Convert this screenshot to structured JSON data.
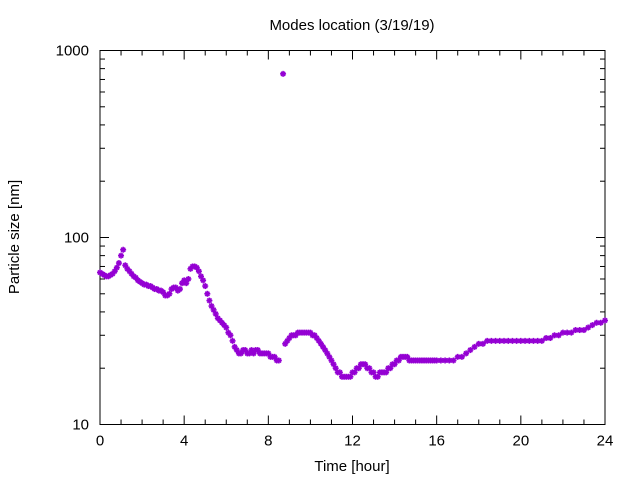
{
  "chart_data": {
    "type": "scatter",
    "title": "Modes location (3/19/19)",
    "xlabel": "Time [hour]",
    "ylabel": "Particle size [nm]",
    "xlim": [
      0,
      24
    ],
    "ylim": [
      10,
      1000
    ],
    "y_scale": "log",
    "grid": false,
    "legend": "none",
    "marker_color": "#9400d3",
    "x_ticks": [
      0,
      4,
      8,
      12,
      16,
      20,
      24
    ],
    "x_tick_labels": [
      "0",
      "4",
      "8",
      "12",
      "16",
      "20",
      "24"
    ],
    "y_ticks": [
      10,
      100,
      1000
    ],
    "y_tick_labels": [
      "10",
      "100",
      "1000"
    ],
    "series": [
      {
        "points": [
          [
            0.0,
            65
          ],
          [
            0.1,
            64
          ],
          [
            0.2,
            63
          ],
          [
            0.3,
            62
          ],
          [
            0.4,
            62
          ],
          [
            0.5,
            63
          ],
          [
            0.6,
            64
          ],
          [
            0.7,
            66
          ],
          [
            0.8,
            69
          ],
          [
            0.9,
            73
          ],
          [
            1.0,
            80
          ],
          [
            1.1,
            86
          ],
          [
            1.2,
            71
          ],
          [
            1.3,
            68
          ],
          [
            1.4,
            66
          ],
          [
            1.5,
            64
          ],
          [
            1.6,
            62
          ],
          [
            1.7,
            61
          ],
          [
            1.8,
            59
          ],
          [
            1.9,
            58
          ],
          [
            2.0,
            57
          ],
          [
            2.1,
            56
          ],
          [
            2.2,
            56
          ],
          [
            2.3,
            55
          ],
          [
            2.4,
            55
          ],
          [
            2.5,
            54
          ],
          [
            2.6,
            53
          ],
          [
            2.7,
            53
          ],
          [
            2.8,
            52
          ],
          [
            2.9,
            52
          ],
          [
            3.0,
            51
          ],
          [
            3.1,
            49
          ],
          [
            3.2,
            49
          ],
          [
            3.3,
            50
          ],
          [
            3.4,
            53
          ],
          [
            3.5,
            54
          ],
          [
            3.6,
            54
          ],
          [
            3.7,
            52
          ],
          [
            3.8,
            53
          ],
          [
            3.9,
            57
          ],
          [
            4.0,
            59
          ],
          [
            4.1,
            57
          ],
          [
            4.2,
            60
          ],
          [
            4.3,
            68
          ],
          [
            4.4,
            70
          ],
          [
            4.5,
            70
          ],
          [
            4.6,
            69
          ],
          [
            4.7,
            66
          ],
          [
            4.8,
            62
          ],
          [
            4.9,
            59
          ],
          [
            5.0,
            55
          ],
          [
            5.1,
            50
          ],
          [
            5.2,
            46
          ],
          [
            5.3,
            43
          ],
          [
            5.4,
            41
          ],
          [
            5.5,
            39
          ],
          [
            5.6,
            37
          ],
          [
            5.7,
            36
          ],
          [
            5.8,
            35
          ],
          [
            5.9,
            34
          ],
          [
            6.0,
            33
          ],
          [
            6.1,
            31
          ],
          [
            6.2,
            30
          ],
          [
            6.3,
            28
          ],
          [
            6.4,
            26
          ],
          [
            6.5,
            25
          ],
          [
            6.6,
            24
          ],
          [
            6.7,
            24
          ],
          [
            6.8,
            25
          ],
          [
            6.9,
            25
          ],
          [
            7.0,
            24
          ],
          [
            7.1,
            24
          ],
          [
            7.2,
            25
          ],
          [
            7.3,
            24
          ],
          [
            7.4,
            25
          ],
          [
            7.5,
            25
          ],
          [
            7.6,
            24
          ],
          [
            7.7,
            24
          ],
          [
            7.8,
            24
          ],
          [
            7.9,
            24
          ],
          [
            8.0,
            24
          ],
          [
            8.1,
            23
          ],
          [
            8.2,
            23
          ],
          [
            8.3,
            23
          ],
          [
            8.4,
            22
          ],
          [
            8.5,
            22
          ],
          [
            8.7,
            750
          ],
          [
            8.8,
            27
          ],
          [
            8.9,
            28
          ],
          [
            9.0,
            29
          ],
          [
            9.1,
            30
          ],
          [
            9.2,
            30
          ],
          [
            9.3,
            30
          ],
          [
            9.4,
            31
          ],
          [
            9.5,
            31
          ],
          [
            9.6,
            31
          ],
          [
            9.7,
            31
          ],
          [
            9.8,
            31
          ],
          [
            9.9,
            31
          ],
          [
            10.0,
            31
          ],
          [
            10.1,
            30
          ],
          [
            10.2,
            30
          ],
          [
            10.3,
            29
          ],
          [
            10.4,
            28
          ],
          [
            10.5,
            27
          ],
          [
            10.6,
            26
          ],
          [
            10.7,
            25
          ],
          [
            10.8,
            24
          ],
          [
            10.9,
            23
          ],
          [
            11.0,
            22
          ],
          [
            11.1,
            21
          ],
          [
            11.2,
            20
          ],
          [
            11.3,
            19
          ],
          [
            11.4,
            19
          ],
          [
            11.5,
            18
          ],
          [
            11.6,
            18
          ],
          [
            11.7,
            18
          ],
          [
            11.8,
            18
          ],
          [
            11.9,
            18
          ],
          [
            12.0,
            19
          ],
          [
            12.1,
            19
          ],
          [
            12.2,
            20
          ],
          [
            12.3,
            20
          ],
          [
            12.4,
            21
          ],
          [
            12.5,
            21
          ],
          [
            12.6,
            21
          ],
          [
            12.7,
            20
          ],
          [
            12.8,
            20
          ],
          [
            12.9,
            19
          ],
          [
            13.0,
            19
          ],
          [
            13.1,
            18
          ],
          [
            13.2,
            18
          ],
          [
            13.3,
            19
          ],
          [
            13.4,
            19
          ],
          [
            13.5,
            19
          ],
          [
            13.6,
            19
          ],
          [
            13.7,
            20
          ],
          [
            13.8,
            20
          ],
          [
            13.9,
            21
          ],
          [
            14.0,
            21
          ],
          [
            14.1,
            22
          ],
          [
            14.2,
            22
          ],
          [
            14.3,
            23
          ],
          [
            14.4,
            23
          ],
          [
            14.5,
            23
          ],
          [
            14.6,
            23
          ],
          [
            14.7,
            22
          ],
          [
            14.8,
            22
          ],
          [
            14.9,
            22
          ],
          [
            15.0,
            22
          ],
          [
            15.1,
            22
          ],
          [
            15.2,
            22
          ],
          [
            15.3,
            22
          ],
          [
            15.4,
            22
          ],
          [
            15.5,
            22
          ],
          [
            15.6,
            22
          ],
          [
            15.7,
            22
          ],
          [
            15.8,
            22
          ],
          [
            15.9,
            22
          ],
          [
            16.0,
            22
          ],
          [
            16.2,
            22
          ],
          [
            16.4,
            22
          ],
          [
            16.6,
            22
          ],
          [
            16.8,
            22
          ],
          [
            17.0,
            23
          ],
          [
            17.2,
            23
          ],
          [
            17.4,
            24
          ],
          [
            17.6,
            25
          ],
          [
            17.8,
            26
          ],
          [
            18.0,
            27
          ],
          [
            18.2,
            27
          ],
          [
            18.4,
            28
          ],
          [
            18.6,
            28
          ],
          [
            18.8,
            28
          ],
          [
            19.0,
            28
          ],
          [
            19.2,
            28
          ],
          [
            19.4,
            28
          ],
          [
            19.6,
            28
          ],
          [
            19.8,
            28
          ],
          [
            20.0,
            28
          ],
          [
            20.2,
            28
          ],
          [
            20.4,
            28
          ],
          [
            20.6,
            28
          ],
          [
            20.8,
            28
          ],
          [
            21.0,
            28
          ],
          [
            21.2,
            29
          ],
          [
            21.4,
            29
          ],
          [
            21.6,
            30
          ],
          [
            21.8,
            30
          ],
          [
            22.0,
            31
          ],
          [
            22.2,
            31
          ],
          [
            22.4,
            31
          ],
          [
            22.6,
            32
          ],
          [
            22.8,
            32
          ],
          [
            23.0,
            32
          ],
          [
            23.2,
            33
          ],
          [
            23.4,
            34
          ],
          [
            23.6,
            35
          ],
          [
            23.8,
            35
          ],
          [
            24.0,
            36
          ]
        ]
      }
    ]
  }
}
